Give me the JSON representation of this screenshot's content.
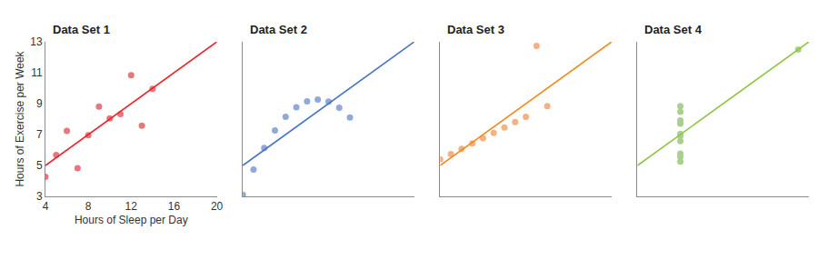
{
  "chart_data": [
    {
      "type": "scatter",
      "title": "Data Set 1",
      "x_label": "Hours of Sleep per Day",
      "y_label": "Hours of Exercise per Week",
      "xlim": [
        4,
        20
      ],
      "ylim": [
        3,
        13
      ],
      "xticks": [
        4,
        8,
        12,
        16,
        20
      ],
      "yticks": [
        3,
        5,
        7,
        9,
        11,
        13
      ],
      "grid": false,
      "series": [
        {
          "type": "scatter",
          "marker": "circle",
          "color": "#e8767a",
          "x": [
            10,
            8,
            13,
            9,
            11,
            14,
            6,
            4,
            12,
            7,
            5
          ],
          "values": [
            8.04,
            6.95,
            7.58,
            8.81,
            8.33,
            9.96,
            7.24,
            4.26,
            10.84,
            4.82,
            5.68
          ]
        },
        {
          "type": "line",
          "line_style": "solid",
          "color": "#e8262b",
          "x": [
            4,
            20
          ],
          "values": [
            5,
            13
          ]
        }
      ]
    },
    {
      "type": "scatter",
      "title": "Data Set 2",
      "xlim": [
        4,
        20
      ],
      "ylim": [
        3,
        13
      ],
      "tick_labels": false,
      "grid": false,
      "series": [
        {
          "type": "scatter",
          "marker": "circle",
          "color": "#91a9d9",
          "x": [
            10,
            8,
            13,
            9,
            11,
            14,
            6,
            4,
            12,
            7,
            5
          ],
          "values": [
            9.14,
            8.14,
            8.74,
            8.77,
            9.26,
            8.1,
            6.13,
            3.1,
            9.13,
            7.26,
            4.74
          ]
        },
        {
          "type": "line",
          "line_style": "solid",
          "color": "#4a74c4",
          "x": [
            4,
            20
          ],
          "values": [
            5,
            13
          ]
        }
      ]
    },
    {
      "type": "scatter",
      "title": "Data Set 3",
      "xlim": [
        4,
        20
      ],
      "ylim": [
        3,
        13
      ],
      "tick_labels": false,
      "grid": false,
      "series": [
        {
          "type": "scatter",
          "marker": "circle",
          "color": "#f4b183",
          "x": [
            10,
            8,
            13,
            9,
            11,
            14,
            6,
            4,
            12,
            7,
            5
          ],
          "values": [
            7.46,
            6.77,
            12.74,
            7.11,
            7.81,
            8.84,
            6.08,
            5.39,
            8.15,
            6.42,
            5.73
          ]
        },
        {
          "type": "line",
          "line_style": "solid",
          "color": "#f28a1e",
          "x": [
            4,
            20
          ],
          "values": [
            5,
            13
          ]
        }
      ]
    },
    {
      "type": "scatter",
      "title": "Data Set 4",
      "xlim": [
        4,
        20
      ],
      "ylim": [
        3,
        13
      ],
      "tick_labels": false,
      "grid": false,
      "series": [
        {
          "type": "scatter",
          "marker": "circle",
          "color": "#a9d18e",
          "x": [
            8,
            8,
            8,
            8,
            8,
            8,
            8,
            19,
            8,
            8,
            8
          ],
          "values": [
            6.58,
            5.76,
            7.71,
            8.84,
            8.47,
            7.04,
            5.25,
            12.5,
            5.56,
            7.91,
            6.89
          ]
        },
        {
          "type": "line",
          "line_style": "solid",
          "color": "#8dc63f",
          "x": [
            4,
            20
          ],
          "values": [
            5,
            13
          ]
        }
      ]
    }
  ]
}
